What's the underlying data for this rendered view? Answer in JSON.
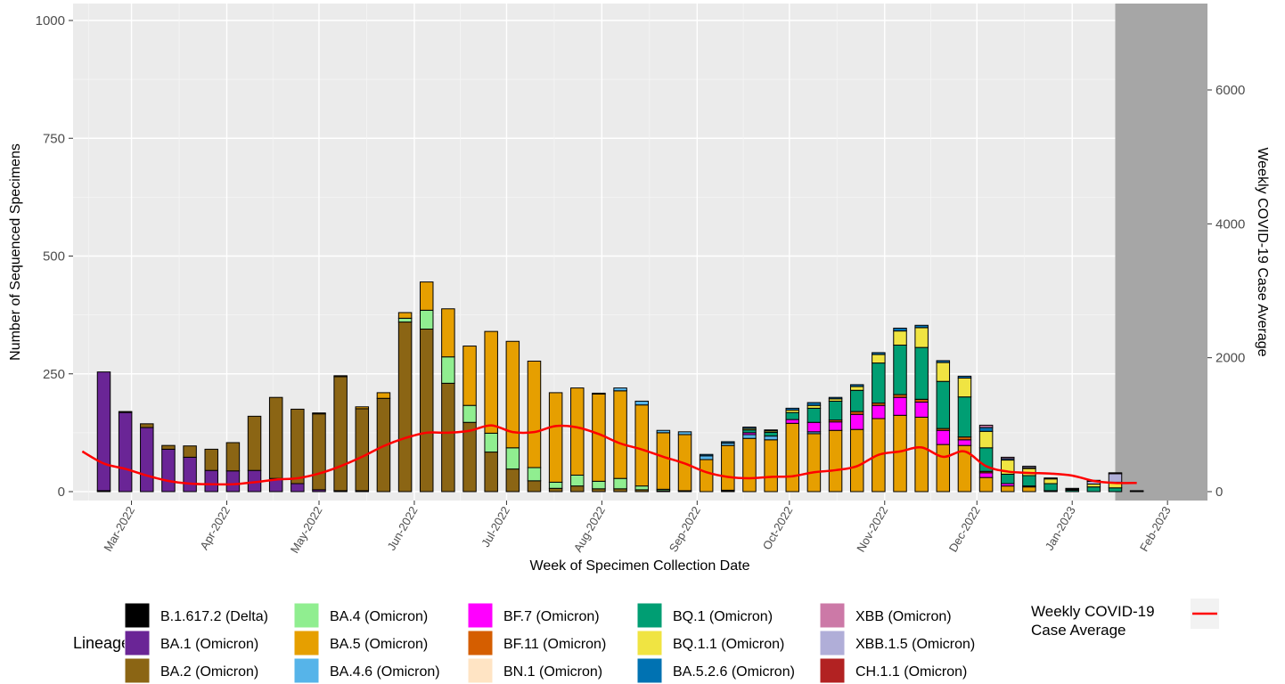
{
  "chart_data": {
    "type": "bar",
    "subtype": "stacked-bar-with-line",
    "title": "",
    "xlabel": "Week of Specimen Collection Date",
    "ylabel": "Number of Sequenced Specimens",
    "y2label": "Weekly COVID-19 Case Average",
    "ylim": [
      0,
      1000
    ],
    "y2lim": [
      0,
      7200
    ],
    "yticks": [
      0,
      250,
      500,
      750,
      1000
    ],
    "y2ticks": [
      0,
      2000,
      4000,
      6000
    ],
    "x_range": [
      "2022-02-10",
      "2023-02-14"
    ],
    "x_tick_labels": [
      "Mar-2022",
      "Apr-2022",
      "May-2022",
      "Jun-2022",
      "Jul-2022",
      "Aug-2022",
      "Sep-2022",
      "Oct-2022",
      "Nov-2022",
      "Dec-2022",
      "Jan-2023",
      "Feb-2023"
    ],
    "x_tick_dates": [
      "2022-03-01",
      "2022-04-01",
      "2022-05-01",
      "2022-06-01",
      "2022-07-01",
      "2022-08-01",
      "2022-09-01",
      "2022-10-01",
      "2022-11-01",
      "2022-12-01",
      "2023-01-01",
      "2023-02-01"
    ],
    "grid": true,
    "shaded_region_start": "2023-01-15",
    "legend_title": "Lineage",
    "legend_position": "bottom",
    "lineages": [
      {
        "key": "delta",
        "name": "B.1.617.2 (Delta)",
        "color": "#000000"
      },
      {
        "key": "ba1",
        "name": "BA.1 (Omicron)",
        "color": "#6a2596"
      },
      {
        "key": "ba2",
        "name": "BA.2 (Omicron)",
        "color": "#8b6514"
      },
      {
        "key": "ba4",
        "name": "BA.4 (Omicron)",
        "color": "#90ee90"
      },
      {
        "key": "ba5",
        "name": "BA.5 (Omicron)",
        "color": "#e69f00"
      },
      {
        "key": "ba46",
        "name": "BA.4.6 (Omicron)",
        "color": "#56b4e9"
      },
      {
        "key": "bf7",
        "name": "BF.7 (Omicron)",
        "color": "#ff00ff"
      },
      {
        "key": "bf11",
        "name": "BF.11 (Omicron)",
        "color": "#d55e00"
      },
      {
        "key": "bn1",
        "name": "BN.1 (Omicron)",
        "color": "#ffe4c4"
      },
      {
        "key": "bq1",
        "name": "BQ.1 (Omicron)",
        "color": "#009e73"
      },
      {
        "key": "bq11",
        "name": "BQ.1.1 (Omicron)",
        "color": "#f0e442"
      },
      {
        "key": "ba526",
        "name": "BA.5.2.6 (Omicron)",
        "color": "#0072b2"
      },
      {
        "key": "xbb",
        "name": "XBB (Omicron)",
        "color": "#cc79a7"
      },
      {
        "key": "xbb15",
        "name": "XBB.1.5 (Omicron)",
        "color": "#b0aed8"
      },
      {
        "key": "ch11",
        "name": "CH.1.1 (Omicron)",
        "color": "#b22222"
      }
    ],
    "line_series": {
      "name": "Weekly COVID-19\nCase Average",
      "color": "#ff0000"
    },
    "weeks": [
      {
        "week": "2022-02-20",
        "delta": 2,
        "ba1": 252
      },
      {
        "week": "2022-02-27",
        "ba1": 168,
        "ba2": 2
      },
      {
        "week": "2022-03-06",
        "ba1": 136,
        "ba2": 8
      },
      {
        "week": "2022-03-13",
        "ba1": 90,
        "ba2": 8
      },
      {
        "week": "2022-03-20",
        "ba1": 73,
        "ba2": 24
      },
      {
        "week": "2022-03-27",
        "ba1": 45,
        "ba2": 45
      },
      {
        "week": "2022-04-03",
        "ba1": 44,
        "ba2": 60
      },
      {
        "week": "2022-04-10",
        "ba1": 45,
        "ba2": 115
      },
      {
        "week": "2022-04-17",
        "ba1": 28,
        "ba2": 172
      },
      {
        "week": "2022-04-24",
        "ba1": 17,
        "ba2": 158
      },
      {
        "week": "2022-05-01",
        "ba1": 4,
        "ba2": 161,
        "ba5": 2
      },
      {
        "week": "2022-05-08",
        "ba1": 2,
        "ba2": 242,
        "ba5": 2
      },
      {
        "week": "2022-05-15",
        "delta": 2,
        "ba2": 174,
        "ba5": 4
      },
      {
        "week": "2022-05-22",
        "ba2": 198,
        "ba5": 12
      },
      {
        "week": "2022-05-29",
        "ba2": 360,
        "ba4": 8,
        "ba5": 12
      },
      {
        "week": "2022-06-05",
        "ba2": 345,
        "ba4": 40,
        "ba5": 60
      },
      {
        "week": "2022-06-12",
        "ba2": 230,
        "ba4": 56,
        "ba5": 102
      },
      {
        "week": "2022-06-19",
        "ba2": 147,
        "ba4": 36,
        "ba5": 126
      },
      {
        "week": "2022-06-26",
        "ba2": 84,
        "ba4": 40,
        "ba5": 216
      },
      {
        "week": "2022-07-03",
        "ba2": 48,
        "ba4": 45,
        "ba5": 226
      },
      {
        "week": "2022-07-10",
        "ba2": 23,
        "ba4": 28,
        "ba5": 226
      },
      {
        "week": "2022-07-17",
        "ba2": 7,
        "ba4": 13,
        "ba5": 190
      },
      {
        "week": "2022-07-24",
        "ba2": 12,
        "ba4": 23,
        "ba5": 185
      },
      {
        "week": "2022-07-31",
        "ba2": 6,
        "ba4": 16,
        "ba5": 185,
        "ba46": 2
      },
      {
        "week": "2022-08-07",
        "ba2": 6,
        "ba4": 22,
        "ba5": 186,
        "ba46": 6
      },
      {
        "week": "2022-08-14",
        "ba2": 4,
        "ba4": 8,
        "ba5": 172,
        "ba46": 8
      },
      {
        "week": "2022-08-21",
        "ba2": 2,
        "ba4": 3,
        "ba5": 120,
        "ba46": 5
      },
      {
        "week": "2022-08-28",
        "ba4": 2,
        "ba5": 119,
        "ba46": 6
      },
      {
        "week": "2022-09-04",
        "ba5": 68,
        "ba46": 8,
        "ba526": 3
      },
      {
        "week": "2022-09-11",
        "delta": 3,
        "ba5": 95,
        "ba46": 5,
        "ba526": 3
      },
      {
        "week": "2022-09-18",
        "ba5": 113,
        "bf7": 4,
        "ba46": 8,
        "bq1": 6,
        "bq11": 3,
        "ba526": 3
      },
      {
        "week": "2022-09-25",
        "ba5": 110,
        "ba46": 8,
        "bq1": 8,
        "bq11": 3,
        "ba526": 2
      },
      {
        "week": "2022-10-02",
        "ba5": 145,
        "bf7": 8,
        "bq1": 15,
        "bq11": 5,
        "ba526": 4
      },
      {
        "week": "2022-10-09",
        "ba5": 123,
        "bf7": 20,
        "ba46": 4,
        "bq1": 30,
        "bq11": 6,
        "ba526": 6
      },
      {
        "week": "2022-10-16",
        "ba5": 130,
        "bf7": 18,
        "bf11": 4,
        "bq1": 40,
        "bq11": 5,
        "ba526": 3
      },
      {
        "week": "2022-10-23",
        "ba5": 132,
        "bf7": 32,
        "bf11": 6,
        "bq1": 45,
        "bq11": 8,
        "ba526": 4
      },
      {
        "week": "2022-10-30",
        "ba5": 155,
        "bf7": 28,
        "bf11": 5,
        "bq1": 85,
        "bq11": 18,
        "ba526": 4
      },
      {
        "week": "2022-11-06",
        "ba5": 162,
        "bf7": 38,
        "bf11": 6,
        "bq1": 105,
        "bq11": 30,
        "ba526": 6
      },
      {
        "week": "2022-11-13",
        "ba5": 158,
        "bf7": 32,
        "bf11": 6,
        "bq1": 110,
        "bq11": 42,
        "ba526": 5
      },
      {
        "week": "2022-11-20",
        "ba5": 100,
        "bf7": 30,
        "bf11": 4,
        "bq1": 100,
        "bq11": 40,
        "ba526": 4
      },
      {
        "week": "2022-11-27",
        "ba5": 98,
        "bf7": 12,
        "bf11": 6,
        "bq1": 85,
        "bq11": 40,
        "ba526": 4
      },
      {
        "week": "2022-12-04",
        "ba5": 30,
        "bf7": 10,
        "bf11": 3,
        "bq1": 50,
        "bq11": 35,
        "ba526": 8,
        "xbb": 5
      },
      {
        "week": "2022-12-11",
        "ba5": 12,
        "bf7": 5,
        "bq1": 20,
        "bq11": 30,
        "ba526": 3,
        "xbb": 3
      },
      {
        "week": "2022-12-18",
        "ba5": 10,
        "bf7": 2,
        "bq1": 22,
        "bq11": 15,
        "xbb": 2,
        "xbb15": 3
      },
      {
        "week": "2022-12-25",
        "ba5": 2,
        "bq1": 15,
        "bq11": 10,
        "xbb15": 2
      },
      {
        "week": "2023-01-01",
        "bq1": 3,
        "bq11": 2,
        "xbb15": 2
      },
      {
        "week": "2023-01-08",
        "bq1": 10,
        "bq11": 6,
        "xbb15": 6,
        "ch11": 2
      },
      {
        "week": "2023-01-15",
        "bq1": 8,
        "bq11": 12,
        "xbb15": 18,
        "ch11": 2
      },
      {
        "week": "2023-01-22",
        "bq1": 1,
        "xbb15": 1
      }
    ],
    "case_average": [
      {
        "date": "2022-02-13",
        "value": 600
      },
      {
        "date": "2022-02-20",
        "value": 420
      },
      {
        "date": "2022-02-27",
        "value": 340
      },
      {
        "date": "2022-03-06",
        "value": 240
      },
      {
        "date": "2022-03-13",
        "value": 160
      },
      {
        "date": "2022-03-20",
        "value": 120
      },
      {
        "date": "2022-03-27",
        "value": 110
      },
      {
        "date": "2022-04-03",
        "value": 110
      },
      {
        "date": "2022-04-10",
        "value": 140
      },
      {
        "date": "2022-04-17",
        "value": 180
      },
      {
        "date": "2022-04-24",
        "value": 200
      },
      {
        "date": "2022-05-01",
        "value": 270
      },
      {
        "date": "2022-05-08",
        "value": 380
      },
      {
        "date": "2022-05-15",
        "value": 520
      },
      {
        "date": "2022-05-22",
        "value": 680
      },
      {
        "date": "2022-05-29",
        "value": 800
      },
      {
        "date": "2022-06-05",
        "value": 880
      },
      {
        "date": "2022-06-12",
        "value": 880
      },
      {
        "date": "2022-06-19",
        "value": 910
      },
      {
        "date": "2022-06-26",
        "value": 990
      },
      {
        "date": "2022-07-03",
        "value": 890
      },
      {
        "date": "2022-07-10",
        "value": 890
      },
      {
        "date": "2022-07-17",
        "value": 980
      },
      {
        "date": "2022-07-24",
        "value": 960
      },
      {
        "date": "2022-07-31",
        "value": 860
      },
      {
        "date": "2022-08-07",
        "value": 720
      },
      {
        "date": "2022-08-14",
        "value": 630
      },
      {
        "date": "2022-08-21",
        "value": 520
      },
      {
        "date": "2022-08-28",
        "value": 420
      },
      {
        "date": "2022-09-04",
        "value": 290
      },
      {
        "date": "2022-09-11",
        "value": 220
      },
      {
        "date": "2022-09-18",
        "value": 200
      },
      {
        "date": "2022-09-25",
        "value": 220
      },
      {
        "date": "2022-10-02",
        "value": 230
      },
      {
        "date": "2022-10-09",
        "value": 290
      },
      {
        "date": "2022-10-16",
        "value": 320
      },
      {
        "date": "2022-10-23",
        "value": 380
      },
      {
        "date": "2022-10-30",
        "value": 550
      },
      {
        "date": "2022-11-06",
        "value": 600
      },
      {
        "date": "2022-11-13",
        "value": 660
      },
      {
        "date": "2022-11-20",
        "value": 520
      },
      {
        "date": "2022-11-27",
        "value": 600
      },
      {
        "date": "2022-12-04",
        "value": 380
      },
      {
        "date": "2022-12-11",
        "value": 300
      },
      {
        "date": "2022-12-18",
        "value": 280
      },
      {
        "date": "2022-12-25",
        "value": 270
      },
      {
        "date": "2023-01-01",
        "value": 240
      },
      {
        "date": "2023-01-08",
        "value": 160
      },
      {
        "date": "2023-01-15",
        "value": 130
      },
      {
        "date": "2023-01-22",
        "value": 130
      }
    ]
  }
}
